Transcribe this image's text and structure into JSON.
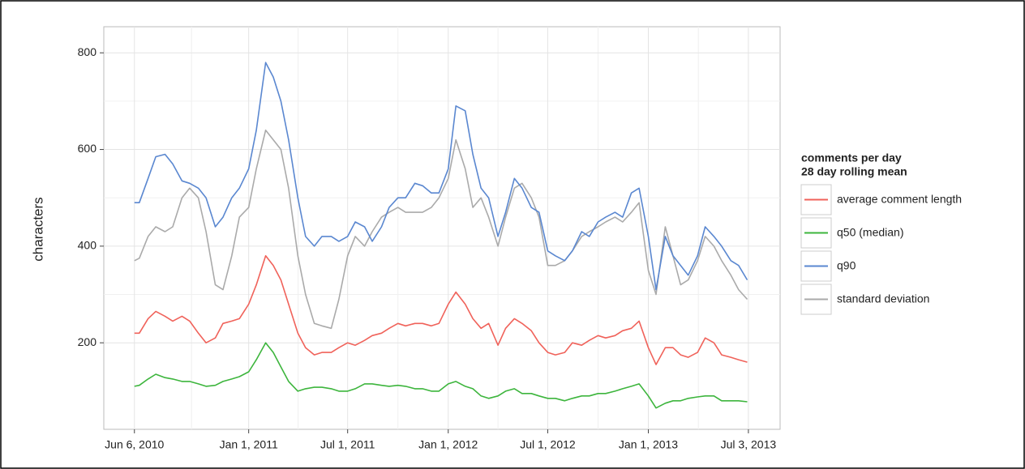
{
  "chart_data": {
    "type": "line",
    "y_label": "characters",
    "legend_title": [
      "comments per day",
      "28 day rolling mean"
    ],
    "legend_position": "right",
    "grid": true,
    "xlim": [
      "2010-04-11",
      "2013-08-30"
    ],
    "ylim": [
      21,
      854
    ],
    "xticks": [
      {
        "value": "2010-06-06",
        "label": "Jun 6, 2010"
      },
      {
        "value": "2011-01-01",
        "label": "Jan 1, 2011"
      },
      {
        "value": "2011-07-01",
        "label": "Jul 1, 2011"
      },
      {
        "value": "2012-01-01",
        "label": "Jan 1, 2012"
      },
      {
        "value": "2012-07-01",
        "label": "Jul 1, 2012"
      },
      {
        "value": "2013-01-01",
        "label": "Jan 1, 2013"
      },
      {
        "value": "2013-07-03",
        "label": "Jul 3, 2013"
      }
    ],
    "yticks": [
      200,
      400,
      600,
      800
    ],
    "x": [
      "2010-06-06",
      "2010-06-15",
      "2010-07-01",
      "2010-07-15",
      "2010-08-01",
      "2010-08-15",
      "2010-09-01",
      "2010-09-15",
      "2010-10-01",
      "2010-10-15",
      "2010-11-01",
      "2010-11-15",
      "2010-12-01",
      "2010-12-15",
      "2011-01-01",
      "2011-01-15",
      "2011-02-01",
      "2011-02-15",
      "2011-03-01",
      "2011-03-15",
      "2011-04-01",
      "2011-04-15",
      "2011-05-01",
      "2011-05-15",
      "2011-06-01",
      "2011-06-15",
      "2011-07-01",
      "2011-07-15",
      "2011-08-01",
      "2011-08-15",
      "2011-09-01",
      "2011-09-15",
      "2011-10-01",
      "2011-10-15",
      "2011-11-01",
      "2011-11-15",
      "2011-12-01",
      "2011-12-15",
      "2012-01-01",
      "2012-01-15",
      "2012-02-01",
      "2012-02-15",
      "2012-03-01",
      "2012-03-15",
      "2012-04-01",
      "2012-04-15",
      "2012-05-01",
      "2012-05-15",
      "2012-06-01",
      "2012-06-15",
      "2012-07-01",
      "2012-07-15",
      "2012-08-01",
      "2012-08-15",
      "2012-09-01",
      "2012-09-15",
      "2012-10-01",
      "2012-10-15",
      "2012-11-01",
      "2012-11-15",
      "2012-12-01",
      "2012-12-15",
      "2013-01-01",
      "2013-01-15",
      "2013-02-01",
      "2013-02-15",
      "2013-03-01",
      "2013-03-15",
      "2013-04-01",
      "2013-04-15",
      "2013-05-01",
      "2013-05-15",
      "2013-06-01",
      "2013-06-15",
      "2013-07-01"
    ],
    "series": [
      {
        "name": "average comment length",
        "color": "#f0625a",
        "values": [
          220,
          220,
          250,
          265,
          255,
          245,
          255,
          245,
          220,
          200,
          210,
          240,
          245,
          250,
          280,
          320,
          380,
          360,
          330,
          280,
          220,
          190,
          175,
          180,
          180,
          190,
          200,
          195,
          205,
          215,
          220,
          230,
          240,
          235,
          240,
          240,
          235,
          240,
          280,
          305,
          280,
          250,
          230,
          240,
          195,
          230,
          250,
          240,
          225,
          200,
          180,
          175,
          180,
          200,
          195,
          205,
          215,
          210,
          215,
          225,
          230,
          245,
          190,
          155,
          190,
          190,
          175,
          170,
          180,
          210,
          200,
          175,
          170,
          165,
          160
        ]
      },
      {
        "name": "q50 (median)",
        "color": "#3db53d",
        "values": [
          110,
          112,
          125,
          135,
          128,
          125,
          120,
          120,
          115,
          110,
          112,
          120,
          125,
          130,
          140,
          165,
          200,
          180,
          150,
          120,
          100,
          105,
          108,
          108,
          105,
          100,
          100,
          105,
          115,
          115,
          112,
          110,
          112,
          110,
          105,
          105,
          100,
          100,
          115,
          120,
          110,
          105,
          90,
          85,
          90,
          100,
          105,
          95,
          95,
          90,
          85,
          85,
          80,
          85,
          90,
          90,
          95,
          95,
          100,
          105,
          110,
          115,
          90,
          65,
          75,
          80,
          80,
          85,
          88,
          90,
          90,
          80,
          80,
          80,
          78
        ]
      },
      {
        "name": "q90",
        "color": "#5a87d0",
        "values": [
          490,
          490,
          540,
          585,
          590,
          570,
          535,
          530,
          520,
          500,
          440,
          460,
          500,
          520,
          560,
          640,
          780,
          750,
          700,
          620,
          500,
          420,
          400,
          420,
          420,
          410,
          420,
          450,
          440,
          410,
          440,
          480,
          500,
          500,
          530,
          525,
          510,
          510,
          560,
          690,
          680,
          590,
          520,
          500,
          420,
          470,
          540,
          520,
          480,
          470,
          390,
          380,
          370,
          390,
          430,
          420,
          450,
          460,
          470,
          460,
          510,
          520,
          420,
          310,
          420,
          380,
          360,
          340,
          380,
          440,
          420,
          400,
          370,
          360,
          330
        ]
      },
      {
        "name": "standard deviation",
        "color": "#aaaaaa",
        "values": [
          370,
          375,
          420,
          440,
          430,
          440,
          500,
          520,
          500,
          430,
          320,
          310,
          380,
          460,
          480,
          560,
          640,
          620,
          600,
          520,
          380,
          300,
          240,
          235,
          230,
          290,
          380,
          420,
          400,
          430,
          460,
          470,
          480,
          470,
          470,
          470,
          480,
          500,
          540,
          620,
          560,
          480,
          500,
          460,
          400,
          460,
          520,
          530,
          500,
          460,
          360,
          360,
          370,
          390,
          420,
          430,
          440,
          450,
          460,
          450,
          470,
          490,
          350,
          300,
          440,
          380,
          320,
          330,
          370,
          420,
          400,
          370,
          340,
          310,
          290
        ]
      }
    ]
  }
}
